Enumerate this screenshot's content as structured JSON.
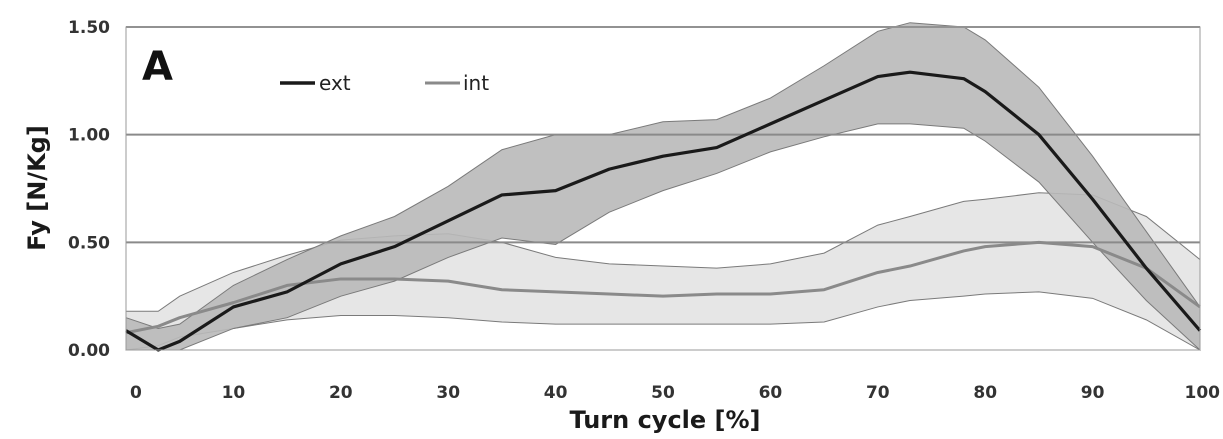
{
  "chart_data": {
    "type": "line",
    "panel_label": "A",
    "title": "",
    "xlabel": "Turn cycle [%]",
    "ylabel": "Fy [N/Kg]",
    "xlim": [
      0,
      100
    ],
    "ylim": [
      0,
      1.5
    ],
    "x_ticks": [
      "0",
      "10",
      "20",
      "30",
      "40",
      "50",
      "60",
      "70",
      "80",
      "90",
      "100"
    ],
    "y_ticks": [
      "0.00",
      "0.50",
      "1.00",
      "1.50"
    ],
    "grid": "horizontal",
    "legend_position": "top-left",
    "colors": {
      "ext_line": "#1a1a1a",
      "ext_band": "#b9b9b9",
      "int_line": "#8a8a8a",
      "int_band": "#e2e2e2",
      "grid": "#8a8a8a"
    },
    "x": [
      0,
      3,
      5,
      10,
      15,
      20,
      25,
      30,
      35,
      40,
      45,
      50,
      55,
      60,
      65,
      70,
      73,
      78,
      80,
      85,
      90,
      95,
      100
    ],
    "series": [
      {
        "name": "ext",
        "mean": [
          0.09,
          0.0,
          0.04,
          0.2,
          0.27,
          0.4,
          0.48,
          0.6,
          0.72,
          0.74,
          0.84,
          0.9,
          0.94,
          1.05,
          1.16,
          1.27,
          1.29,
          1.26,
          1.2,
          1.0,
          0.7,
          0.38,
          0.09
        ],
        "upper": [
          0.15,
          0.1,
          0.12,
          0.3,
          0.42,
          0.53,
          0.62,
          0.76,
          0.93,
          1.0,
          1.0,
          1.06,
          1.07,
          1.17,
          1.32,
          1.48,
          1.52,
          1.5,
          1.44,
          1.22,
          0.9,
          0.55,
          0.2
        ],
        "lower": [
          0.0,
          0.0,
          0.0,
          0.1,
          0.15,
          0.25,
          0.32,
          0.43,
          0.52,
          0.49,
          0.64,
          0.74,
          0.82,
          0.92,
          0.99,
          1.05,
          1.05,
          1.03,
          0.97,
          0.78,
          0.5,
          0.23,
          0.0
        ]
      },
      {
        "name": "int",
        "mean": [
          0.08,
          0.11,
          0.15,
          0.22,
          0.3,
          0.33,
          0.33,
          0.32,
          0.28,
          0.27,
          0.26,
          0.25,
          0.26,
          0.26,
          0.28,
          0.36,
          0.39,
          0.46,
          0.48,
          0.5,
          0.48,
          0.38,
          0.2
        ],
        "upper": [
          0.18,
          0.18,
          0.25,
          0.36,
          0.44,
          0.51,
          0.53,
          0.54,
          0.5,
          0.43,
          0.4,
          0.39,
          0.38,
          0.4,
          0.45,
          0.58,
          0.62,
          0.69,
          0.7,
          0.73,
          0.72,
          0.62,
          0.42
        ],
        "lower": [
          0.0,
          0.02,
          0.06,
          0.1,
          0.14,
          0.16,
          0.16,
          0.15,
          0.13,
          0.12,
          0.12,
          0.12,
          0.12,
          0.12,
          0.13,
          0.2,
          0.23,
          0.25,
          0.26,
          0.27,
          0.24,
          0.14,
          0.0
        ]
      }
    ]
  }
}
